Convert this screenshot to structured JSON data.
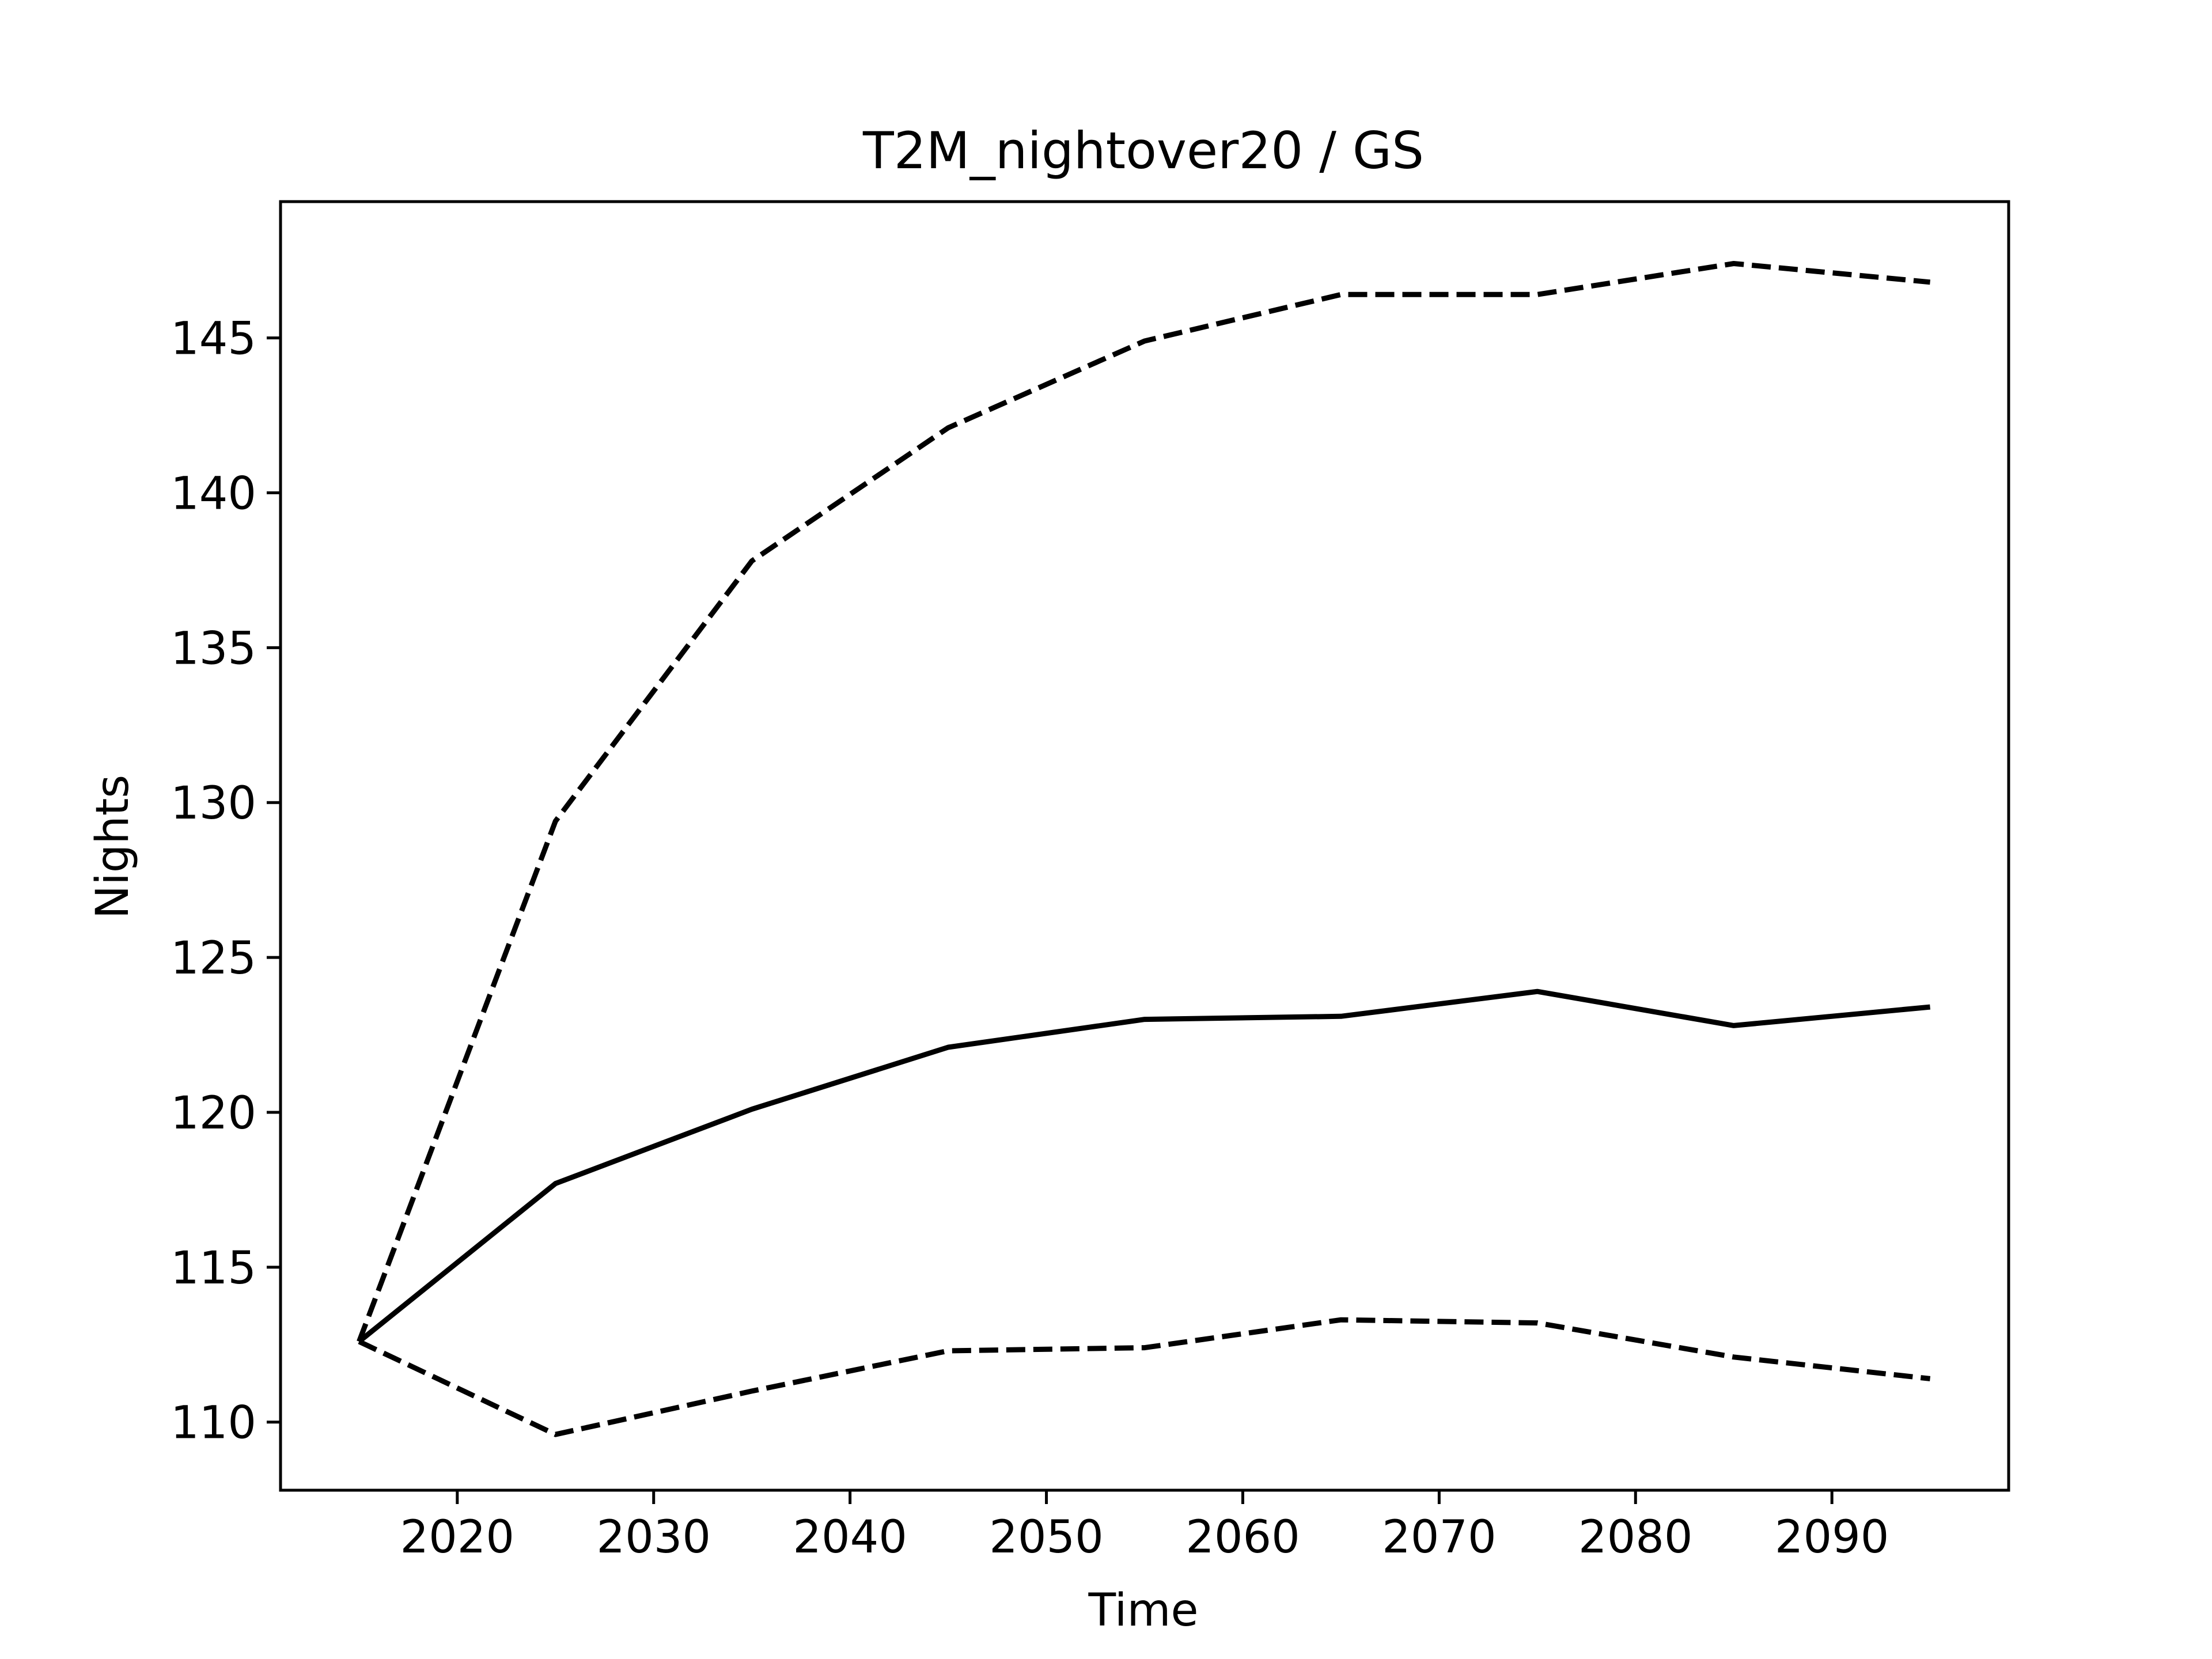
{
  "chart_data": {
    "type": "line",
    "title": "T2M_nightover20 / GS",
    "xlabel": "Time",
    "ylabel": "Nights",
    "xlim": [
      2011,
      2099
    ],
    "ylim": [
      107.8,
      149.4
    ],
    "xticks": [
      2020,
      2030,
      2040,
      2050,
      2060,
      2070,
      2080,
      2090
    ],
    "yticks": [
      110,
      115,
      120,
      125,
      130,
      135,
      140,
      145
    ],
    "grid": false,
    "legend": "none",
    "x": [
      2015,
      2025,
      2035,
      2045,
      2055,
      2065,
      2075,
      2085,
      2095
    ],
    "series": [
      {
        "style": "solid",
        "color": "#000000",
        "values": [
          112.6,
          117.7,
          120.1,
          122.1,
          123.0,
          123.1,
          123.9,
          122.8,
          123.4
        ]
      },
      {
        "style": "dashed",
        "color": "#000000",
        "values": [
          112.6,
          129.4,
          137.8,
          142.1,
          144.9,
          146.4,
          146.4,
          147.4,
          146.8
        ]
      },
      {
        "style": "dashed",
        "color": "#000000",
        "values": [
          112.6,
          109.6,
          111.0,
          112.3,
          112.4,
          113.3,
          113.2,
          112.1,
          111.4
        ]
      }
    ]
  }
}
